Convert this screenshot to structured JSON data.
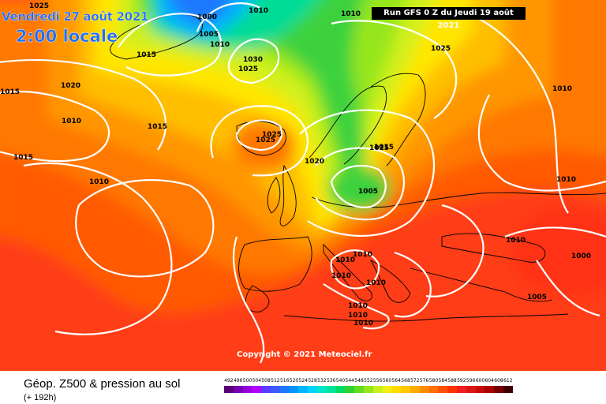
{
  "header": {
    "date_label": "Vendredi 27 août 2021",
    "time_label": "2:00 locale",
    "run_label": "Run GFS 0 Z du Jeudi 19 août 2021"
  },
  "copyright": "Copyright © 2021 Meteociel.fr",
  "footer": {
    "title": "Géop. Z500 & pression au sol",
    "subtitle": "(+ 192h)"
  },
  "color_scale": {
    "labels": [
      "492",
      "496",
      "500",
      "504",
      "508",
      "512",
      "516",
      "520",
      "524",
      "528",
      "532",
      "536",
      "540",
      "544",
      "548",
      "552",
      "556",
      "560",
      "564",
      "568",
      "572",
      "576",
      "580",
      "584",
      "588",
      "592",
      "596",
      "600",
      "604",
      "608",
      "612"
    ],
    "colors": [
      "#5a0078",
      "#7800b4",
      "#9600dc",
      "#b400ff",
      "#5a3cff",
      "#3c5aff",
      "#1e78ff",
      "#0096ff",
      "#00b4ff",
      "#00d2ff",
      "#00e6c8",
      "#00e696",
      "#00dc64",
      "#32d232",
      "#64dc1e",
      "#96e61e",
      "#c8f01e",
      "#f0f014",
      "#ffdc00",
      "#ffc800",
      "#ffaa00",
      "#ff8c00",
      "#ff6e00",
      "#ff5000",
      "#ff3200",
      "#f01e1e",
      "#dc1414",
      "#c80a0a",
      "#aa0000",
      "#780000",
      "#3c0000"
    ]
  },
  "isobar_labels": [
    {
      "text": "1025"
    },
    {
      "text": "1000"
    },
    {
      "text": "1010"
    },
    {
      "text": "1005"
    },
    {
      "text": "1010"
    },
    {
      "text": "1015"
    },
    {
      "text": "1015"
    },
    {
      "text": "1030"
    },
    {
      "text": "1025"
    },
    {
      "text": "1010"
    },
    {
      "text": "1025"
    },
    {
      "text": "1020"
    },
    {
      "text": "1015"
    },
    {
      "text": "1010"
    },
    {
      "text": "1015"
    },
    {
      "text": "1025"
    },
    {
      "text": "1025"
    },
    {
      "text": "1015"
    },
    {
      "text": "1010"
    },
    {
      "text": "1020"
    },
    {
      "text": "1015"
    },
    {
      "text": "1005"
    },
    {
      "text": "1010"
    },
    {
      "text": "1010"
    },
    {
      "text": "1010"
    },
    {
      "text": "1010"
    },
    {
      "text": "1010"
    },
    {
      "text": "1010"
    },
    {
      "text": "1000"
    },
    {
      "text": "1005"
    },
    {
      "text": "1010"
    },
    {
      "text": "1010"
    },
    {
      "text": "1010"
    },
    {
      "text": "1010"
    }
  ]
}
